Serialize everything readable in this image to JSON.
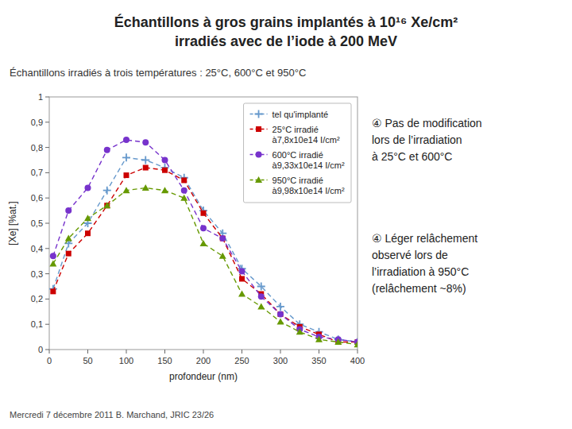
{
  "chart_data": {
    "type": "line",
    "title": "Échantillons à gros grains implantés à 10¹⁶ Xe/cm²\nirradiés avec de l’iode à 200 MeV",
    "subtitle": "Échantillons irradiés à trois températures : 25°C, 600°C et 950°C",
    "x_label": "profondeur (nm)",
    "y_label": "[Xe] [%at.]",
    "annotations": [
      "④ Pas de modification\nlors de l’irradiation\nà 25°C et 600°C",
      "④ Léger relâchement\nobservé lors de\nl’irradiation à 950°C\n(relâchement ~8%)"
    ],
    "footer": "Mercredi 7 décembre 2011    B. Marchand, JRIC      23/26",
    "x": [
      5,
      25,
      50,
      75,
      100,
      125,
      150,
      175,
      200,
      225,
      250,
      275,
      300,
      325,
      350,
      375,
      400
    ],
    "series": [
      {
        "name": "tel qu'implanté",
        "color": "#6699cc",
        "marker": "plus",
        "line_style": "dashed",
        "values": [
          0.24,
          0.42,
          0.5,
          0.63,
          0.76,
          0.75,
          0.72,
          0.68,
          0.55,
          0.46,
          0.32,
          0.25,
          0.17,
          0.1,
          0.07,
          0.04,
          0.03
        ]
      },
      {
        "name": "25°C irradié\nà7,8x10e14 I/cm²",
        "color": "#cc0000",
        "marker": "square",
        "line_style": "dashed",
        "values": [
          0.23,
          0.38,
          0.46,
          0.57,
          0.69,
          0.72,
          0.71,
          0.67,
          0.54,
          0.44,
          0.28,
          0.22,
          0.14,
          0.09,
          0.06,
          0.03,
          0.03
        ]
      },
      {
        "name": "600°C irradié\nà9,33x10e14 I/cm²",
        "color": "#7733cc",
        "marker": "circle",
        "line_style": "dashed",
        "values": [
          0.37,
          0.55,
          0.64,
          0.79,
          0.83,
          0.82,
          0.75,
          0.63,
          0.48,
          0.44,
          0.31,
          0.21,
          0.14,
          0.08,
          0.05,
          0.04,
          0.03
        ]
      },
      {
        "name": "950°C irradié\nà9,98x10e14 I/cm²",
        "color": "#669900",
        "marker": "triangle",
        "line_style": "dashed",
        "values": [
          0.34,
          0.44,
          0.52,
          0.57,
          0.63,
          0.64,
          0.63,
          0.6,
          0.42,
          0.37,
          0.22,
          0.17,
          0.11,
          0.07,
          0.04,
          0.03,
          0.02
        ]
      }
    ],
    "xlim": [
      0,
      400
    ],
    "ylim": [
      0,
      1.0
    ],
    "xticks": [
      0,
      50,
      100,
      150,
      200,
      250,
      300,
      350,
      400
    ],
    "yticks": [
      0,
      {
        "value": 0.1,
        "label": "0,1"
      },
      {
        "value": 0.2,
        "label": "0,2"
      },
      {
        "value": 0.3,
        "label": "0,3"
      },
      {
        "value": 0.4,
        "label": "0,4"
      },
      {
        "value": 0.5,
        "label": "0,5"
      },
      {
        "value": 0.6,
        "label": "0,6"
      },
      {
        "value": 0.7,
        "label": "0,7"
      },
      {
        "value": 0.8,
        "label": "0,8"
      },
      {
        "value": 0.9,
        "label": "0,9"
      },
      1
    ],
    "grid": false,
    "legend": "upper right"
  }
}
